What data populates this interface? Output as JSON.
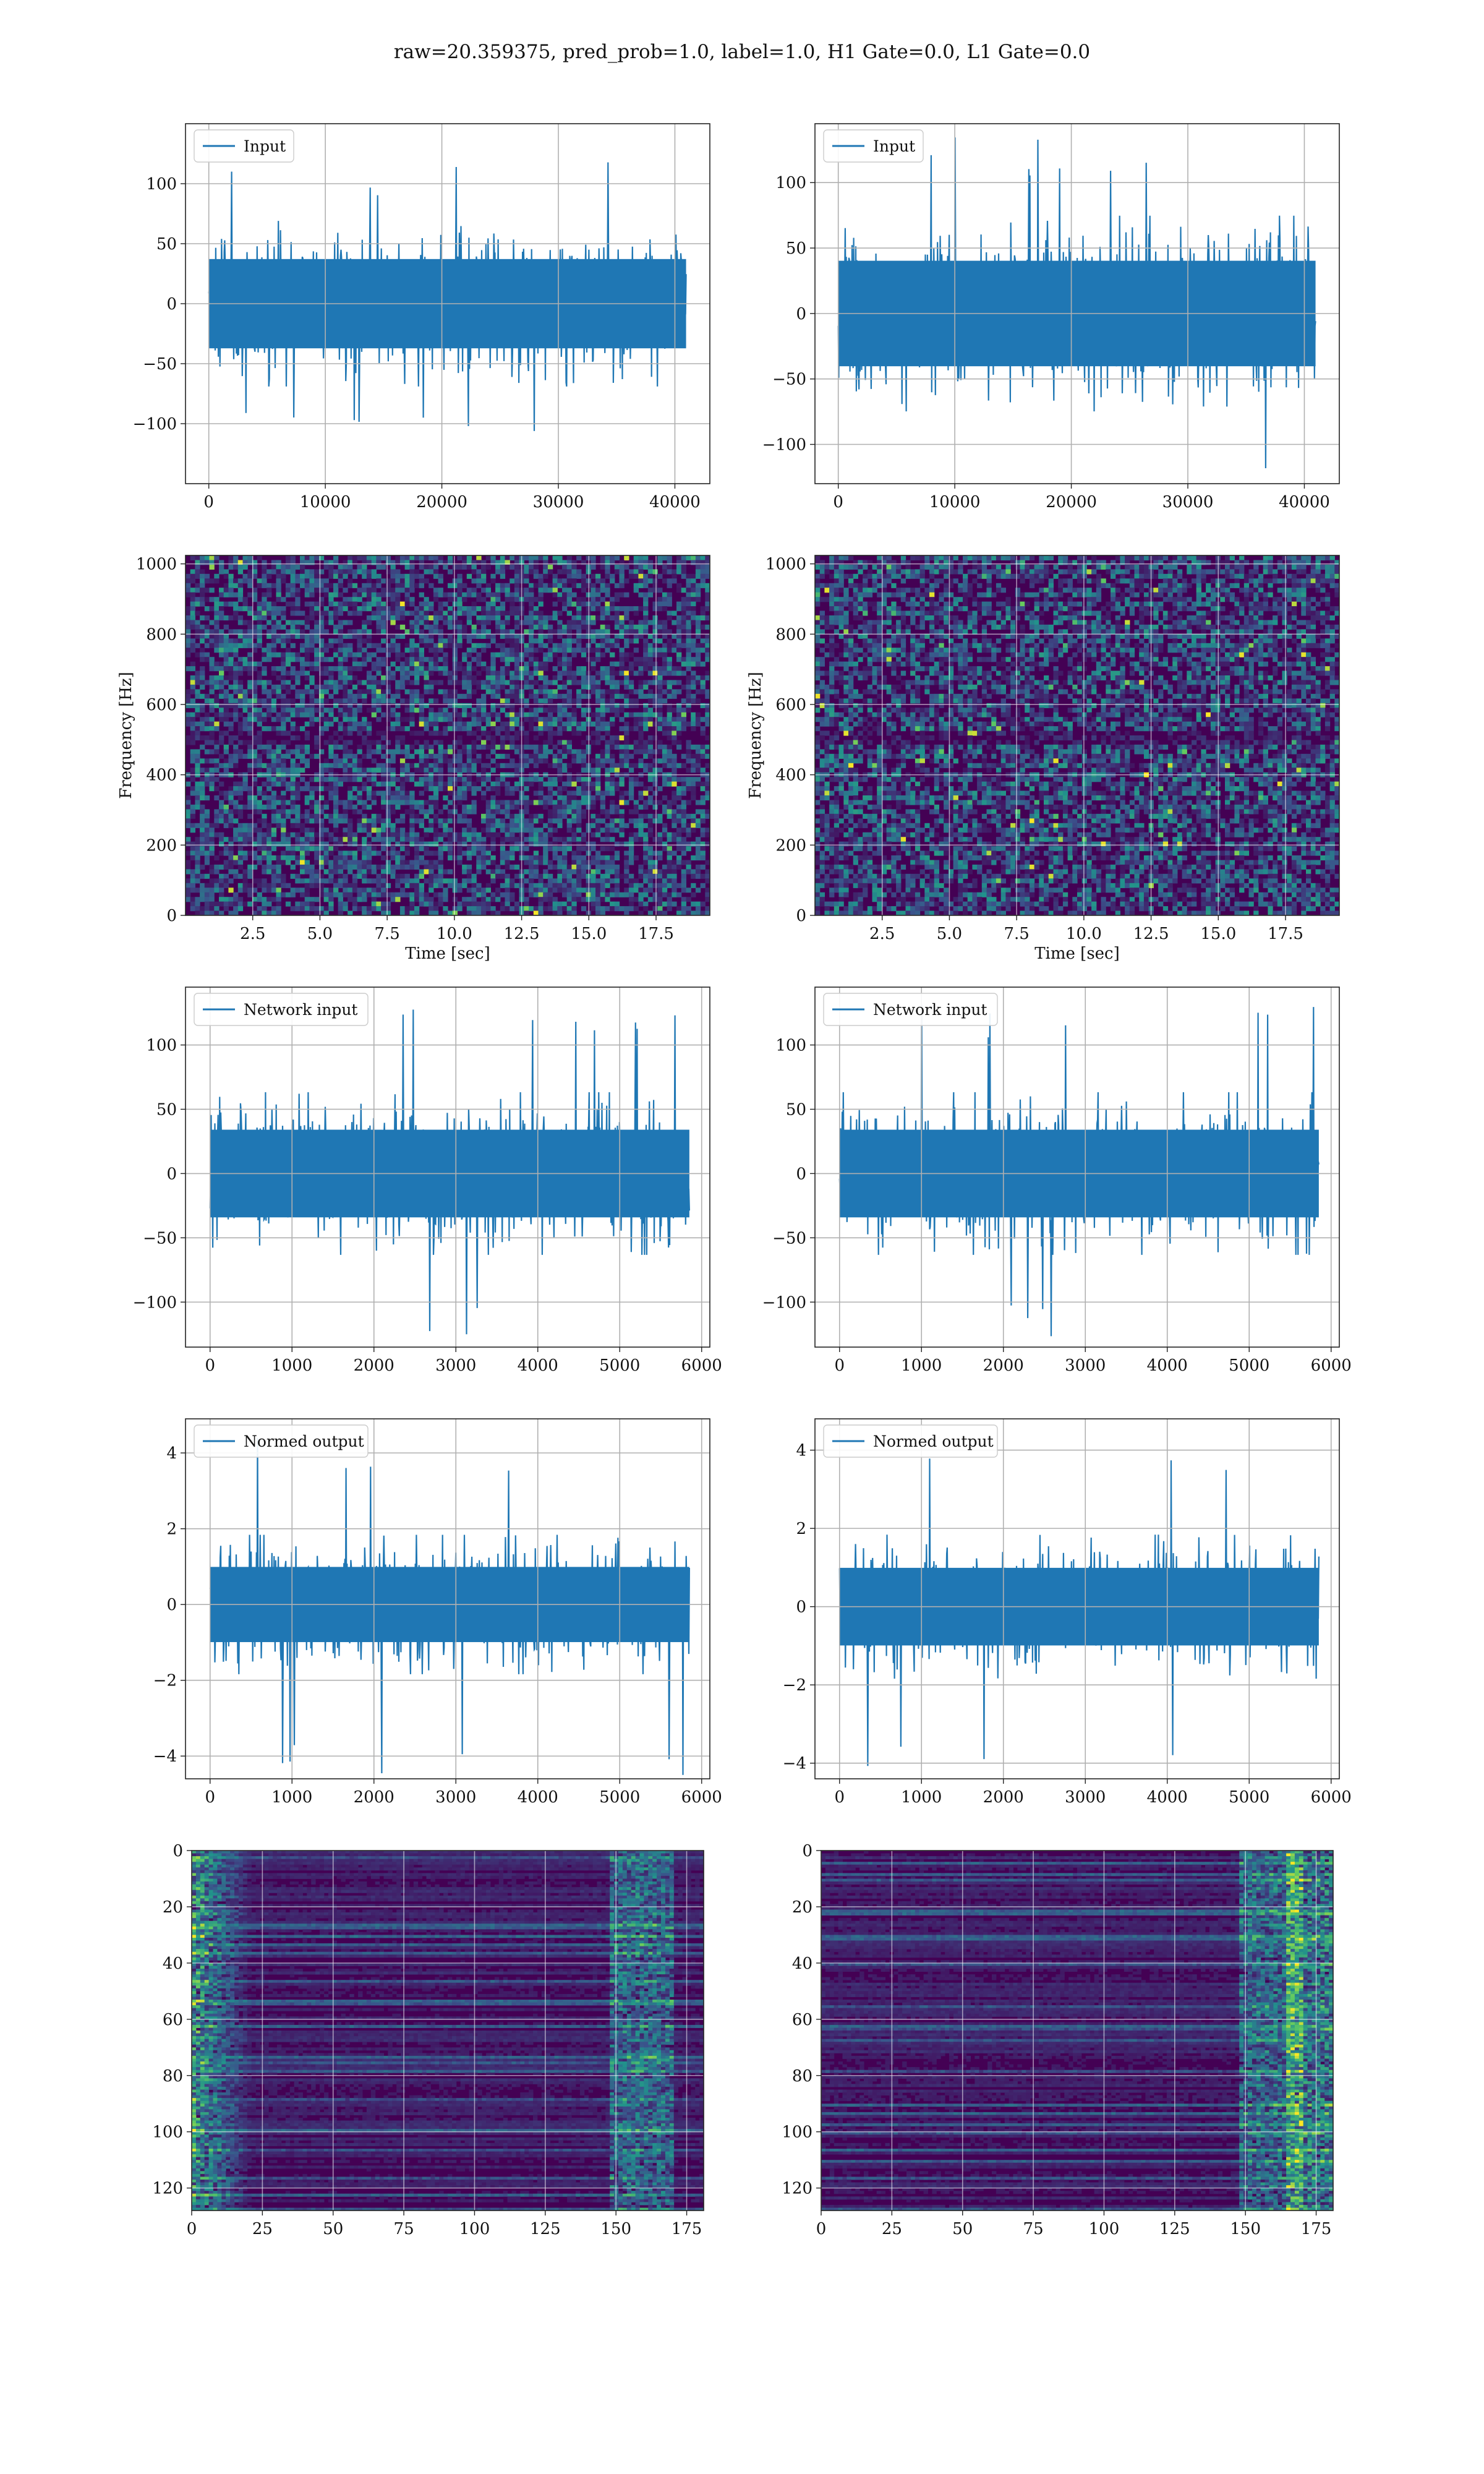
{
  "figure_title": "raw=20.359375, pred_prob=1.0, label=1.0, H1 Gate=0.0, L1 Gate=0.0",
  "colors": {
    "line": "#1f77b4",
    "grid": "#b0b0b0",
    "viridis_low": "#440154",
    "viridis_mid": "#21918c",
    "viridis_high": "#fde725"
  },
  "chart_data": [
    {
      "id": "input-h1",
      "type": "line",
      "series": [
        {
          "name": "Input",
          "values": []
        }
      ],
      "envelope": {
        "x_range": [
          0,
          40960
        ],
        "typical_amplitude": 60,
        "peak_amplitude": 120
      },
      "xlim": [
        -2000,
        43000
      ],
      "ylim": [
        -150,
        150
      ],
      "xticks": [
        "0",
        "10000",
        "20000",
        "30000",
        "40000"
      ],
      "yticks": [
        "100",
        "50",
        "0",
        "−50",
        "−100"
      ],
      "legend": "top-left",
      "grid": true
    },
    {
      "id": "input-l1",
      "type": "line",
      "series": [
        {
          "name": "Input",
          "values": []
        }
      ],
      "envelope": {
        "x_range": [
          0,
          40960
        ],
        "typical_amplitude": 65,
        "peak_amplitude": 135
      },
      "xlim": [
        -2000,
        43000
      ],
      "ylim": [
        -130,
        145
      ],
      "xticks": [
        "0",
        "10000",
        "20000",
        "30000",
        "40000"
      ],
      "yticks": [
        "100",
        "50",
        "0",
        "−50",
        "−100"
      ],
      "legend": "top-left",
      "grid": true
    },
    {
      "id": "spectrogram-h1",
      "type": "heatmap",
      "xlabel": "Time [sec]",
      "ylabel": "Frequency [Hz]",
      "xlim": [
        0,
        19.5
      ],
      "ylim": [
        0,
        1024
      ],
      "xticks": [
        "2.5",
        "5.0",
        "7.5",
        "10.0",
        "12.5",
        "15.0",
        "17.5"
      ],
      "yticks": [
        "1000",
        "800",
        "600",
        "400",
        "200",
        "0"
      ],
      "colormap": "viridis",
      "grid": true
    },
    {
      "id": "spectrogram-l1",
      "type": "heatmap",
      "xlabel": "Time [sec]",
      "ylabel": "Frequency [Hz]",
      "xlim": [
        0,
        19.5
      ],
      "ylim": [
        0,
        1024
      ],
      "xticks": [
        "2.5",
        "5.0",
        "7.5",
        "10.0",
        "12.5",
        "15.0",
        "17.5"
      ],
      "yticks": [
        "1000",
        "800",
        "600",
        "400",
        "200",
        "0"
      ],
      "colormap": "viridis",
      "grid": true
    },
    {
      "id": "network-input-h1",
      "type": "line",
      "series": [
        {
          "name": "Network input",
          "values": []
        }
      ],
      "envelope": {
        "x_range": [
          0,
          5850
        ],
        "typical_amplitude": 55,
        "peak_amplitude": 135
      },
      "xlim": [
        -300,
        6100
      ],
      "ylim": [
        -135,
        145
      ],
      "xticks": [
        "0",
        "1000",
        "2000",
        "3000",
        "4000",
        "5000",
        "6000"
      ],
      "yticks": [
        "100",
        "50",
        "0",
        "−50",
        "−100"
      ],
      "legend": "top-left",
      "grid": true
    },
    {
      "id": "network-input-l1",
      "type": "line",
      "series": [
        {
          "name": "Network input",
          "values": []
        }
      ],
      "envelope": {
        "x_range": [
          0,
          5850
        ],
        "typical_amplitude": 55,
        "peak_amplitude": 135
      },
      "xlim": [
        -300,
        6100
      ],
      "ylim": [
        -135,
        145
      ],
      "xticks": [
        "0",
        "1000",
        "2000",
        "3000",
        "4000",
        "5000",
        "6000"
      ],
      "yticks": [
        "100",
        "50",
        "0",
        "−50",
        "−100"
      ],
      "legend": "top-left",
      "grid": true
    },
    {
      "id": "normed-output-h1",
      "type": "line",
      "series": [
        {
          "name": "Normed output",
          "values": []
        }
      ],
      "envelope": {
        "x_range": [
          0,
          5850
        ],
        "typical_amplitude": 1.6,
        "peak_amplitude": 4.5
      },
      "xlim": [
        -300,
        6100
      ],
      "ylim": [
        -4.6,
        4.9
      ],
      "xticks": [
        "0",
        "1000",
        "2000",
        "3000",
        "4000",
        "5000",
        "6000"
      ],
      "yticks": [
        "4",
        "2",
        "0",
        "−2",
        "−4"
      ],
      "legend": "top-left",
      "grid": true
    },
    {
      "id": "normed-output-l1",
      "type": "line",
      "series": [
        {
          "name": "Normed output",
          "values": []
        }
      ],
      "envelope": {
        "x_range": [
          0,
          5850
        ],
        "typical_amplitude": 1.6,
        "peak_amplitude": 4.4
      },
      "xlim": [
        -300,
        6100
      ],
      "ylim": [
        -4.4,
        4.8
      ],
      "xticks": [
        "0",
        "1000",
        "2000",
        "3000",
        "4000",
        "5000",
        "6000"
      ],
      "yticks": [
        "4",
        "2",
        "0",
        "−2",
        "−4"
      ],
      "legend": "top-left",
      "grid": true
    },
    {
      "id": "feature-map-h1",
      "type": "heatmap",
      "xlim": [
        0,
        181
      ],
      "ylim": [
        128,
        0
      ],
      "xticks": [
        "0",
        "25",
        "50",
        "75",
        "100",
        "125",
        "150",
        "175"
      ],
      "yticks": [
        "0",
        "20",
        "40",
        "60",
        "80",
        "100",
        "120"
      ],
      "colormap": "viridis",
      "grid": true
    },
    {
      "id": "feature-map-l1",
      "type": "heatmap",
      "xlim": [
        0,
        181
      ],
      "ylim": [
        128,
        0
      ],
      "xticks": [
        "0",
        "25",
        "50",
        "75",
        "100",
        "125",
        "150",
        "175"
      ],
      "yticks": [
        "0",
        "20",
        "40",
        "60",
        "80",
        "100",
        "120"
      ],
      "colormap": "viridis",
      "grid": true
    }
  ]
}
